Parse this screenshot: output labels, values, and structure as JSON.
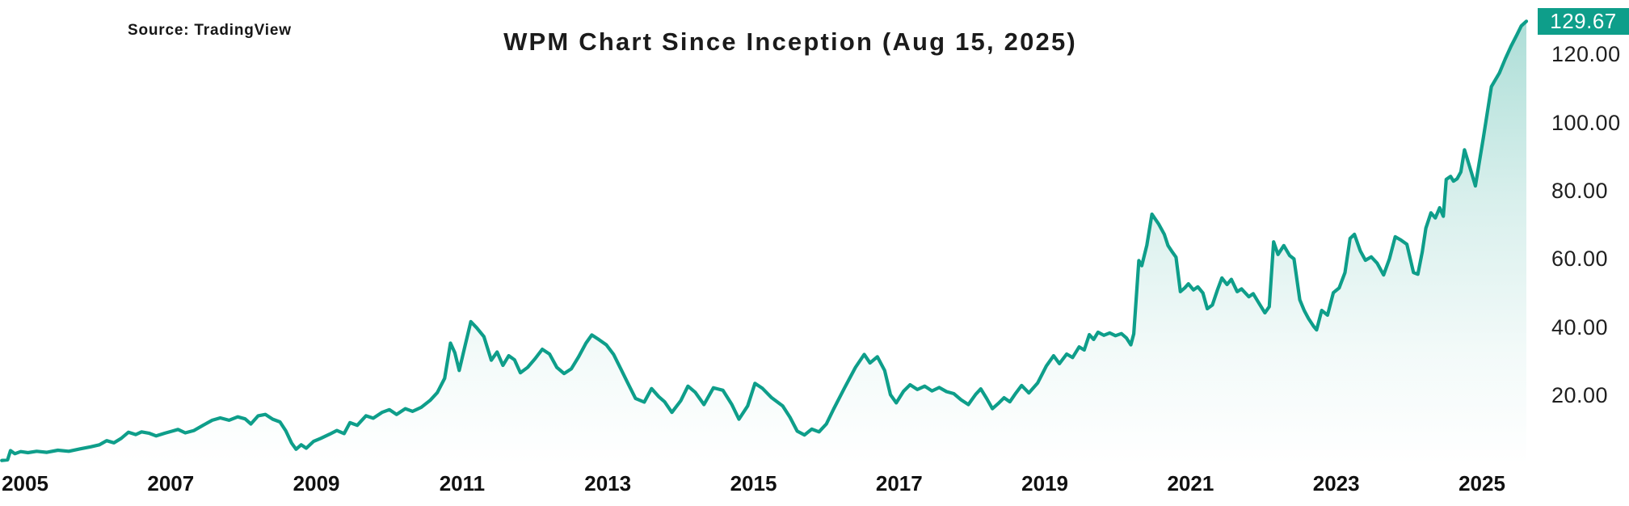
{
  "header": {
    "source_label": "Source: TradingView",
    "title": "WPM Chart Since Inception (Aug 15, 2025)"
  },
  "colors": {
    "line": "#0e9e8a",
    "badge_bg": "#0e9e8a",
    "badge_text": "#ffffff",
    "tick_text": "#1f1f1f"
  },
  "chart_data": {
    "type": "area",
    "title": "WPM Chart Since Inception (Aug 15, 2025)",
    "xlabel": "",
    "ylabel": "",
    "x_unit": "year",
    "xlim": [
      2004.68,
      2025.63
    ],
    "ylim": [
      0,
      135
    ],
    "grid": false,
    "legend": "none",
    "last_price": "129.67",
    "last_price_value": 129.67,
    "y_ticks": [
      {
        "value": 120,
        "label": "120.00"
      },
      {
        "value": 100,
        "label": "100.00"
      },
      {
        "value": 80,
        "label": "80.00"
      },
      {
        "value": 60,
        "label": "60.00"
      },
      {
        "value": 40,
        "label": "40.00"
      },
      {
        "value": 20,
        "label": "20.00"
      }
    ],
    "x_ticks": [
      {
        "year": 2005,
        "label": "2005"
      },
      {
        "year": 2007,
        "label": "2007"
      },
      {
        "year": 2009,
        "label": "2009"
      },
      {
        "year": 2011,
        "label": "2011"
      },
      {
        "year": 2013,
        "label": "2013"
      },
      {
        "year": 2015,
        "label": "2015"
      },
      {
        "year": 2017,
        "label": "2017"
      },
      {
        "year": 2019,
        "label": "2019"
      },
      {
        "year": 2021,
        "label": "2021"
      },
      {
        "year": 2023,
        "label": "2023"
      },
      {
        "year": 2025,
        "label": "2025"
      }
    ],
    "series": [
      {
        "name": "WPM",
        "points": [
          [
            2004.68,
            0.9
          ],
          [
            2004.76,
            1.1
          ],
          [
            2004.8,
            3.8
          ],
          [
            2004.86,
            2.9
          ],
          [
            2004.94,
            3.5
          ],
          [
            2005.04,
            3.2
          ],
          [
            2005.16,
            3.6
          ],
          [
            2005.3,
            3.3
          ],
          [
            2005.45,
            3.9
          ],
          [
            2005.6,
            3.6
          ],
          [
            2005.75,
            4.3
          ],
          [
            2005.9,
            4.9
          ],
          [
            2006.02,
            5.5
          ],
          [
            2006.12,
            6.7
          ],
          [
            2006.22,
            6.1
          ],
          [
            2006.32,
            7.4
          ],
          [
            2006.42,
            9.2
          ],
          [
            2006.52,
            8.5
          ],
          [
            2006.6,
            9.3
          ],
          [
            2006.7,
            8.9
          ],
          [
            2006.8,
            8.1
          ],
          [
            2006.92,
            8.9
          ],
          [
            2007.02,
            9.5
          ],
          [
            2007.1,
            10.0
          ],
          [
            2007.2,
            9.0
          ],
          [
            2007.32,
            9.7
          ],
          [
            2007.45,
            11.3
          ],
          [
            2007.57,
            12.7
          ],
          [
            2007.68,
            13.4
          ],
          [
            2007.8,
            12.7
          ],
          [
            2007.92,
            13.7
          ],
          [
            2008.02,
            13.1
          ],
          [
            2008.1,
            11.6
          ],
          [
            2008.2,
            14.0
          ],
          [
            2008.3,
            14.4
          ],
          [
            2008.4,
            13.0
          ],
          [
            2008.5,
            12.2
          ],
          [
            2008.58,
            9.6
          ],
          [
            2008.66,
            6.0
          ],
          [
            2008.72,
            4.2
          ],
          [
            2008.79,
            5.5
          ],
          [
            2008.86,
            4.5
          ],
          [
            2008.96,
            6.5
          ],
          [
            2009.06,
            7.4
          ],
          [
            2009.18,
            8.6
          ],
          [
            2009.28,
            9.7
          ],
          [
            2009.38,
            8.8
          ],
          [
            2009.46,
            12.0
          ],
          [
            2009.56,
            11.2
          ],
          [
            2009.68,
            14.0
          ],
          [
            2009.78,
            13.3
          ],
          [
            2009.9,
            15.0
          ],
          [
            2010.0,
            15.8
          ],
          [
            2010.1,
            14.4
          ],
          [
            2010.22,
            16.1
          ],
          [
            2010.32,
            15.3
          ],
          [
            2010.44,
            16.5
          ],
          [
            2010.56,
            18.5
          ],
          [
            2010.66,
            20.8
          ],
          [
            2010.76,
            25.0
          ],
          [
            2010.84,
            35.3
          ],
          [
            2010.9,
            32.5
          ],
          [
            2010.96,
            27.3
          ],
          [
            2011.04,
            34.5
          ],
          [
            2011.12,
            41.6
          ],
          [
            2011.2,
            39.8
          ],
          [
            2011.3,
            37.2
          ],
          [
            2011.4,
            30.3
          ],
          [
            2011.48,
            32.7
          ],
          [
            2011.56,
            28.8
          ],
          [
            2011.64,
            31.6
          ],
          [
            2011.72,
            30.4
          ],
          [
            2011.8,
            26.6
          ],
          [
            2011.9,
            28.2
          ],
          [
            2012.0,
            30.7
          ],
          [
            2012.1,
            33.5
          ],
          [
            2012.2,
            32.1
          ],
          [
            2012.3,
            28.2
          ],
          [
            2012.4,
            26.4
          ],
          [
            2012.5,
            27.8
          ],
          [
            2012.6,
            31.3
          ],
          [
            2012.7,
            35.3
          ],
          [
            2012.78,
            37.7
          ],
          [
            2012.88,
            36.3
          ],
          [
            2012.98,
            34.8
          ],
          [
            2013.08,
            32.0
          ],
          [
            2013.18,
            27.7
          ],
          [
            2013.28,
            23.4
          ],
          [
            2013.38,
            19.1
          ],
          [
            2013.5,
            18.0
          ],
          [
            2013.6,
            22.0
          ],
          [
            2013.7,
            19.6
          ],
          [
            2013.78,
            18.1
          ],
          [
            2013.88,
            15.0
          ],
          [
            2014.0,
            18.4
          ],
          [
            2014.1,
            22.7
          ],
          [
            2014.2,
            20.9
          ],
          [
            2014.32,
            17.3
          ],
          [
            2014.45,
            22.2
          ],
          [
            2014.58,
            21.5
          ],
          [
            2014.7,
            17.4
          ],
          [
            2014.8,
            13.0
          ],
          [
            2014.92,
            16.9
          ],
          [
            2015.02,
            23.5
          ],
          [
            2015.12,
            22.1
          ],
          [
            2015.25,
            19.3
          ],
          [
            2015.4,
            16.9
          ],
          [
            2015.5,
            13.6
          ],
          [
            2015.6,
            9.5
          ],
          [
            2015.7,
            8.4
          ],
          [
            2015.8,
            10.1
          ],
          [
            2015.9,
            9.3
          ],
          [
            2016.0,
            11.6
          ],
          [
            2016.1,
            16.0
          ],
          [
            2016.25,
            22.2
          ],
          [
            2016.4,
            28.2
          ],
          [
            2016.52,
            32.0
          ],
          [
            2016.6,
            29.5
          ],
          [
            2016.7,
            31.3
          ],
          [
            2016.8,
            27.3
          ],
          [
            2016.88,
            20.2
          ],
          [
            2016.96,
            17.8
          ],
          [
            2017.06,
            21.2
          ],
          [
            2017.15,
            23.1
          ],
          [
            2017.25,
            21.7
          ],
          [
            2017.35,
            22.7
          ],
          [
            2017.45,
            21.3
          ],
          [
            2017.55,
            22.3
          ],
          [
            2017.65,
            21.1
          ],
          [
            2017.75,
            20.5
          ],
          [
            2017.85,
            18.7
          ],
          [
            2017.95,
            17.3
          ],
          [
            2018.05,
            20.3
          ],
          [
            2018.12,
            21.9
          ],
          [
            2018.2,
            19.1
          ],
          [
            2018.28,
            16.1
          ],
          [
            2018.36,
            17.6
          ],
          [
            2018.44,
            19.3
          ],
          [
            2018.52,
            18.1
          ],
          [
            2018.6,
            20.6
          ],
          [
            2018.68,
            22.9
          ],
          [
            2018.78,
            20.7
          ],
          [
            2018.9,
            23.6
          ],
          [
            2019.02,
            28.6
          ],
          [
            2019.12,
            31.6
          ],
          [
            2019.2,
            29.3
          ],
          [
            2019.3,
            32.1
          ],
          [
            2019.38,
            31.1
          ],
          [
            2019.47,
            34.2
          ],
          [
            2019.54,
            33.3
          ],
          [
            2019.61,
            37.8
          ],
          [
            2019.67,
            36.4
          ],
          [
            2019.73,
            38.5
          ],
          [
            2019.81,
            37.6
          ],
          [
            2019.89,
            38.3
          ],
          [
            2019.97,
            37.5
          ],
          [
            2020.05,
            38.1
          ],
          [
            2020.12,
            36.8
          ],
          [
            2020.18,
            34.8
          ],
          [
            2020.22,
            38.0
          ],
          [
            2020.29,
            59.5
          ],
          [
            2020.33,
            58.0
          ],
          [
            2020.4,
            64.0
          ],
          [
            2020.47,
            73.1
          ],
          [
            2020.56,
            70.3
          ],
          [
            2020.64,
            67.2
          ],
          [
            2020.69,
            63.9
          ],
          [
            2020.75,
            62.0
          ],
          [
            2020.8,
            60.5
          ],
          [
            2020.86,
            50.4
          ],
          [
            2020.92,
            51.5
          ],
          [
            2020.97,
            52.7
          ],
          [
            2021.04,
            50.9
          ],
          [
            2021.1,
            51.8
          ],
          [
            2021.17,
            50.0
          ],
          [
            2021.23,
            45.4
          ],
          [
            2021.3,
            46.5
          ],
          [
            2021.37,
            51.0
          ],
          [
            2021.43,
            54.4
          ],
          [
            2021.5,
            52.5
          ],
          [
            2021.56,
            54.0
          ],
          [
            2021.64,
            50.4
          ],
          [
            2021.7,
            51.2
          ],
          [
            2021.8,
            48.9
          ],
          [
            2021.86,
            49.8
          ],
          [
            2021.94,
            47.0
          ],
          [
            2022.02,
            44.2
          ],
          [
            2022.08,
            46.0
          ],
          [
            2022.14,
            65.0
          ],
          [
            2022.2,
            61.3
          ],
          [
            2022.28,
            63.9
          ],
          [
            2022.36,
            61.0
          ],
          [
            2022.42,
            60.0
          ],
          [
            2022.5,
            48.0
          ],
          [
            2022.56,
            44.9
          ],
          [
            2022.62,
            42.5
          ],
          [
            2022.69,
            40.2
          ],
          [
            2022.73,
            39.2
          ],
          [
            2022.8,
            44.9
          ],
          [
            2022.88,
            43.5
          ],
          [
            2022.96,
            50.1
          ],
          [
            2023.04,
            51.5
          ],
          [
            2023.12,
            56.0
          ],
          [
            2023.19,
            66.0
          ],
          [
            2023.25,
            67.2
          ],
          [
            2023.33,
            62.4
          ],
          [
            2023.4,
            59.6
          ],
          [
            2023.48,
            60.6
          ],
          [
            2023.56,
            58.8
          ],
          [
            2023.65,
            55.3
          ],
          [
            2023.73,
            60.0
          ],
          [
            2023.81,
            66.5
          ],
          [
            2023.89,
            65.5
          ],
          [
            2023.97,
            64.3
          ],
          [
            2024.06,
            56.0
          ],
          [
            2024.12,
            55.5
          ],
          [
            2024.18,
            62.0
          ],
          [
            2024.23,
            69.0
          ],
          [
            2024.3,
            73.5
          ],
          [
            2024.36,
            72.0
          ],
          [
            2024.42,
            75.0
          ],
          [
            2024.47,
            72.5
          ],
          [
            2024.51,
            83.3
          ],
          [
            2024.57,
            84.2
          ],
          [
            2024.61,
            82.8
          ],
          [
            2024.66,
            83.5
          ],
          [
            2024.71,
            85.5
          ],
          [
            2024.76,
            92.0
          ],
          [
            2024.81,
            88.5
          ],
          [
            2024.86,
            85.0
          ],
          [
            2024.91,
            81.4
          ],
          [
            2025.02,
            95.6
          ],
          [
            2025.13,
            110.5
          ],
          [
            2025.19,
            112.7
          ],
          [
            2025.24,
            114.5
          ],
          [
            2025.32,
            118.6
          ],
          [
            2025.4,
            122.4
          ],
          [
            2025.48,
            125.7
          ],
          [
            2025.54,
            128.3
          ],
          [
            2025.61,
            129.67
          ]
        ]
      }
    ]
  }
}
